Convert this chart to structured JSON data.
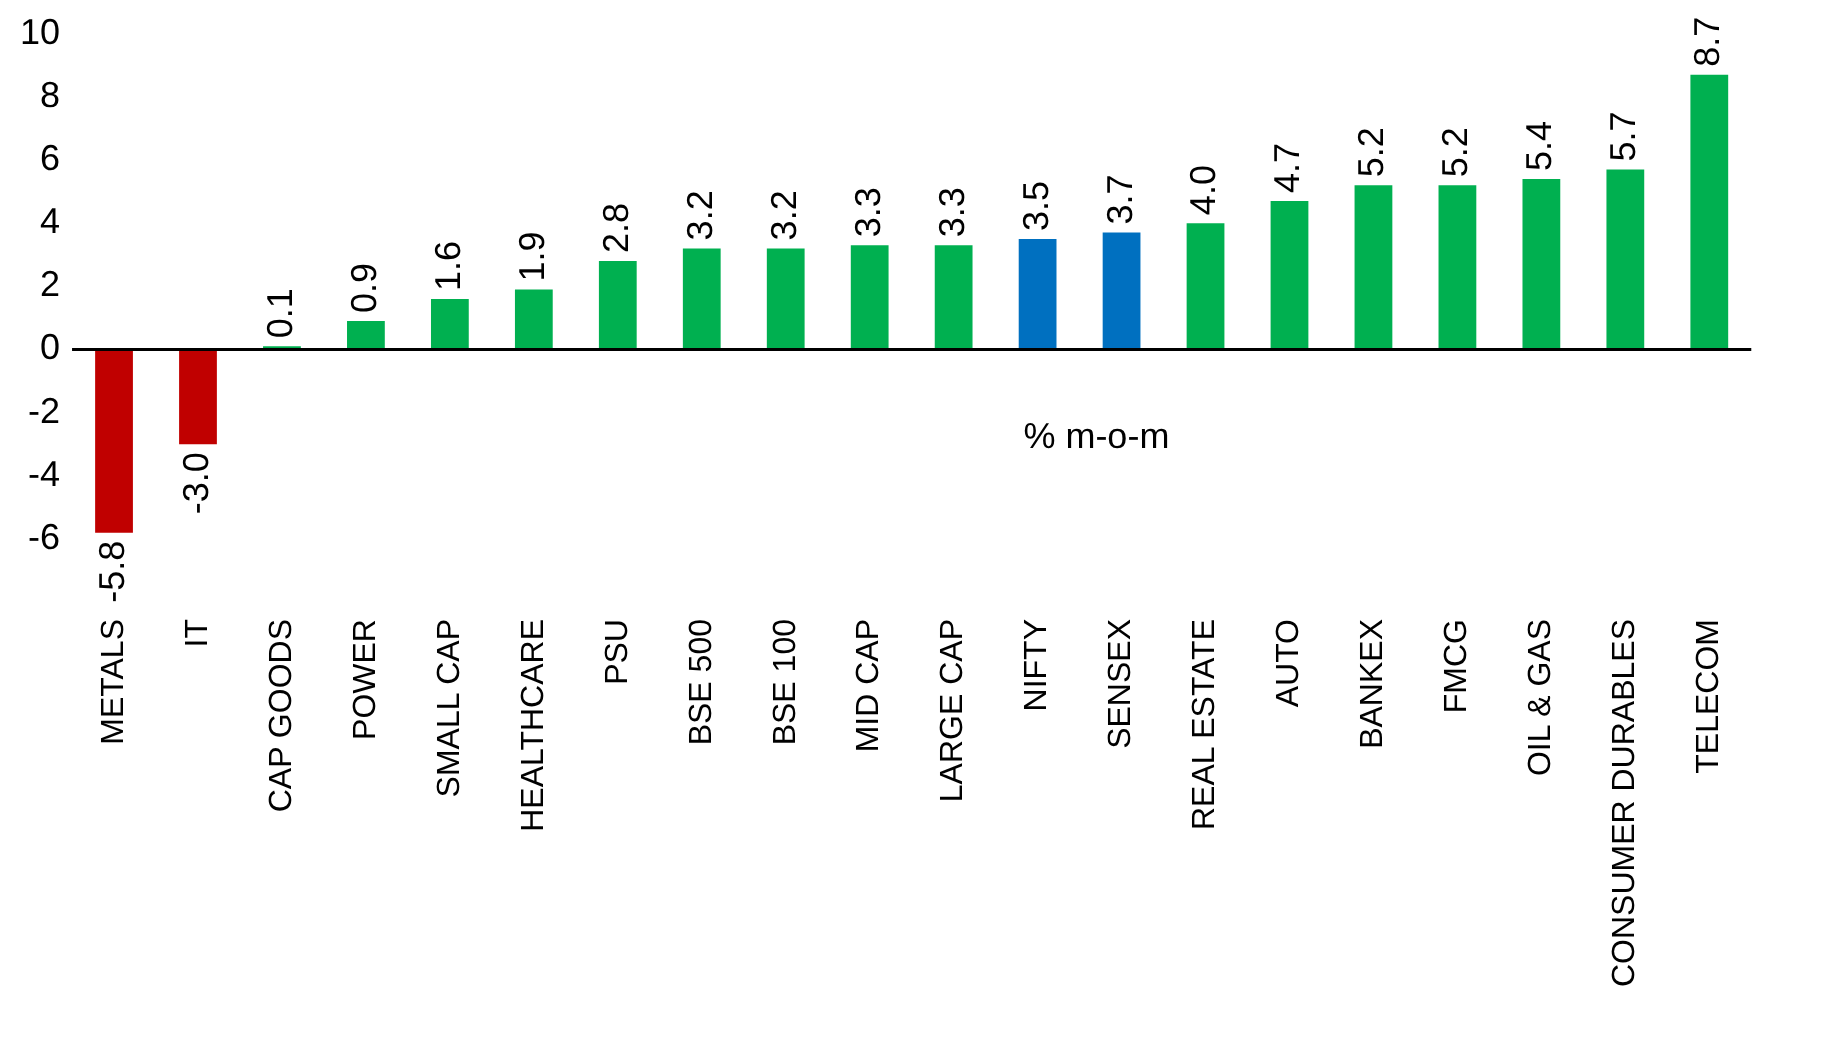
{
  "chart_data": {
    "type": "bar",
    "categories": [
      "METALS",
      "IT",
      "CAP GOODS",
      "POWER",
      "SMALL CAP",
      "HEALTHCARE",
      "PSU",
      "BSE 500",
      "BSE 100",
      "MID CAP",
      "LARGE CAP",
      "NIFTY",
      "SENSEX",
      "REAL ESTATE",
      "AUTO",
      "BANKEX",
      "FMCG",
      "OIL & GAS",
      "CONSUMER DURABLES",
      "TELECOM"
    ],
    "values": [
      -5.8,
      -3.0,
      0.1,
      0.9,
      1.6,
      1.9,
      2.8,
      3.2,
      3.2,
      3.3,
      3.3,
      3.5,
      3.7,
      4.0,
      4.7,
      5.2,
      5.2,
      5.4,
      5.7,
      8.7
    ],
    "colors": [
      "#c00000",
      "#c00000",
      "#00b050",
      "#00b050",
      "#00b050",
      "#00b050",
      "#00b050",
      "#00b050",
      "#00b050",
      "#00b050",
      "#00b050",
      "#0070c0",
      "#0070c0",
      "#00b050",
      "#00b050",
      "#00b050",
      "#00b050",
      "#00b050",
      "#00b050",
      "#00b050"
    ],
    "value_labels": [
      "-5.8",
      "-3.0",
      "0.1",
      "0.9",
      "1.6",
      "1.9",
      "2.8",
      "3.2",
      "3.2",
      "3.3",
      "3.3",
      "3.5",
      "3.7",
      "4.0",
      "4.7",
      "5.2",
      "5.2",
      "5.4",
      "5.7",
      "8.7"
    ],
    "ylim": [
      -6,
      10
    ],
    "yticks": [
      -6,
      -4,
      -2,
      0,
      2,
      4,
      6,
      8,
      10
    ],
    "annotations": [
      "% m-o-m"
    ]
  }
}
